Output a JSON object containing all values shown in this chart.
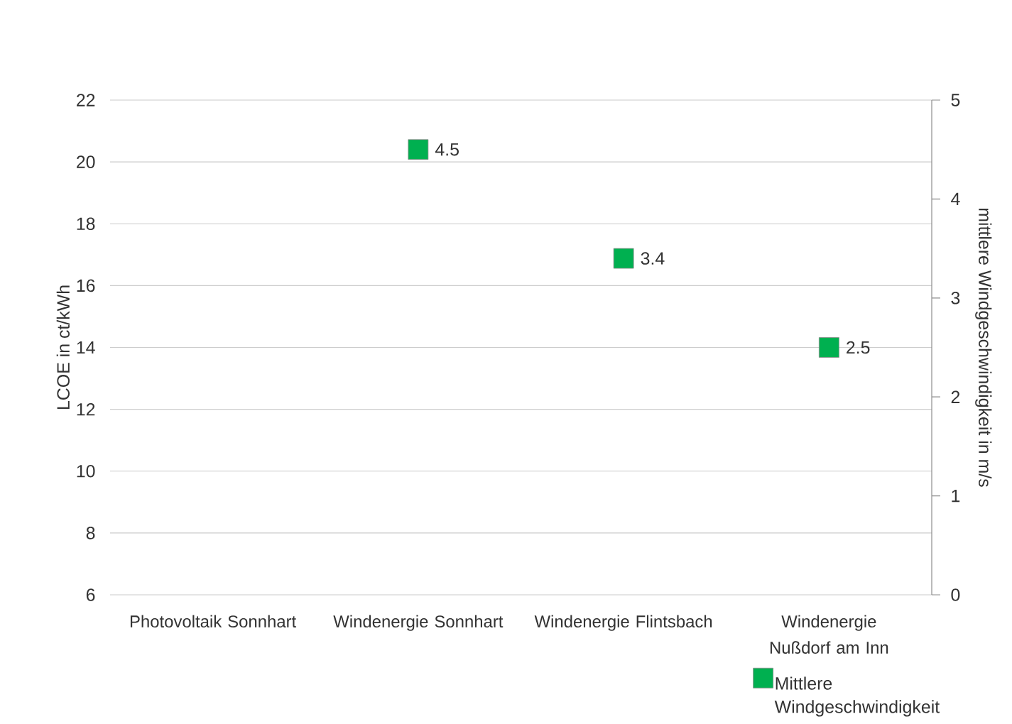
{
  "chart_data": {
    "type": "scatter",
    "categories": [
      "Photovoltaik Sonnhart",
      "Windenergie Sonnhart",
      "Windenergie Flintsbach",
      "Windenergie Nußdorf am Inn"
    ],
    "ylabel": "LCOE in ct/kWh",
    "y2label": "mittlere Windgeschwindigkeit in m/s",
    "ylim": [
      6,
      22
    ],
    "yticks": [
      6,
      8,
      10,
      12,
      14,
      16,
      18,
      20,
      22
    ],
    "y2lim": [
      0,
      5
    ],
    "y2ticks": [
      0,
      1,
      2,
      3,
      4,
      5
    ],
    "grid": "y",
    "legend": "bottom right",
    "marker": "square",
    "series": [
      {
        "name": "Mittlere Windgeschwindigkeit",
        "color": "#00b050",
        "axis": "y2",
        "values": [
          null,
          4.5,
          3.4,
          2.5
        ],
        "value_labels": [
          null,
          "4.5",
          "3.4",
          "2.5"
        ]
      }
    ]
  }
}
